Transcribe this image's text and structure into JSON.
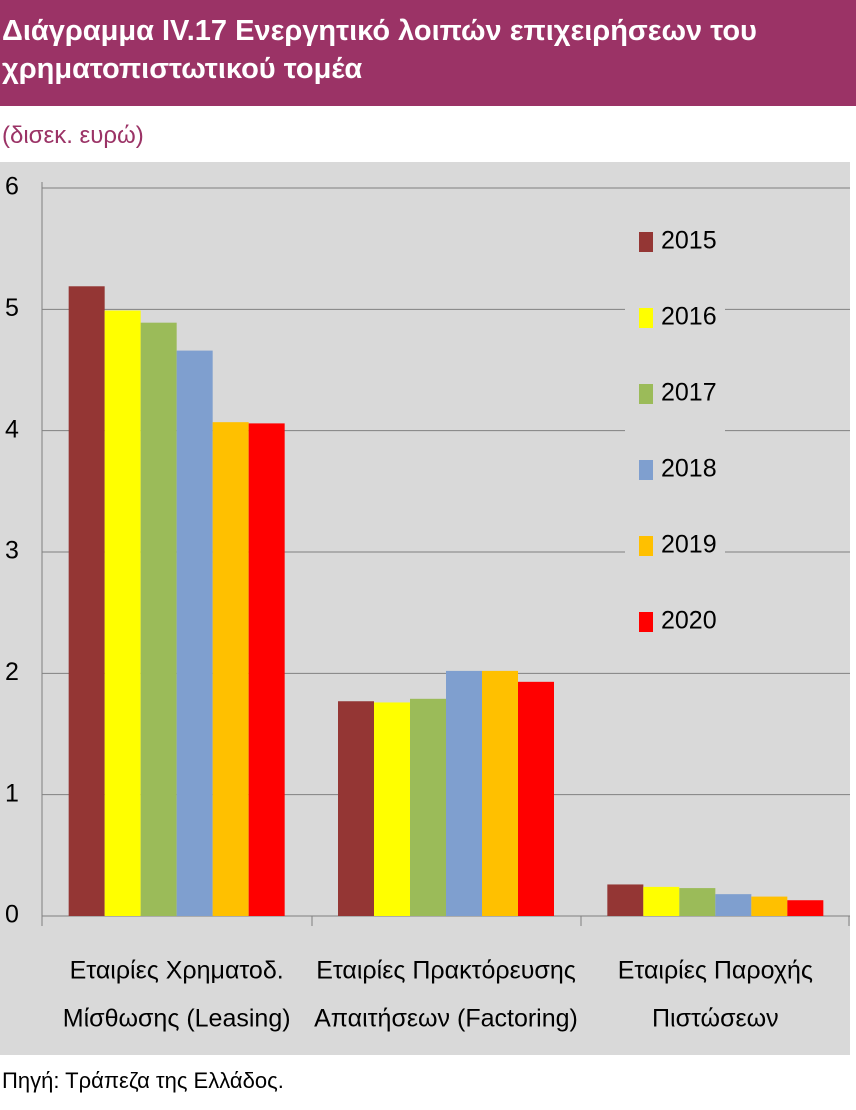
{
  "chart_data": {
    "type": "bar",
    "title": "Διάγραμμα IV.17 Ενεργητικό λοιπών επιχειρήσεων του χρηματοπιστωτικού τομέα",
    "subtitle": "(δισεκ. ευρώ)",
    "source": "Πηγή: Τράπεζα της Ελλάδος.",
    "categories": [
      [
        "Εταιρίες Χρηματοδ.",
        "Μίσθωσης (Leasing)"
      ],
      [
        "Εταιρίες Πρακτόρευσης",
        "Απαιτήσεων (Factoring)"
      ],
      [
        "Εταιρίες Παροχής",
        "Πιστώσεων"
      ]
    ],
    "series": [
      {
        "name": "2015",
        "color": "#943634",
        "values": [
          5.19,
          1.77,
          0.26
        ]
      },
      {
        "name": "2016",
        "color": "#ffff00",
        "values": [
          4.99,
          1.76,
          0.24
        ]
      },
      {
        "name": "2017",
        "color": "#9bbb59",
        "values": [
          4.89,
          1.79,
          0.23
        ]
      },
      {
        "name": "2018",
        "color": "#7f9fcf",
        "values": [
          4.66,
          2.02,
          0.18
        ]
      },
      {
        "name": "2019",
        "color": "#ffc000",
        "values": [
          4.07,
          2.02,
          0.16
        ]
      },
      {
        "name": "2020",
        "color": "#ff0000",
        "values": [
          4.06,
          1.93,
          0.13
        ]
      }
    ],
    "ylim": [
      0,
      6
    ],
    "yticks": [
      0,
      1,
      2,
      3,
      4,
      5,
      6
    ],
    "grid": true,
    "legend": "upper right"
  }
}
